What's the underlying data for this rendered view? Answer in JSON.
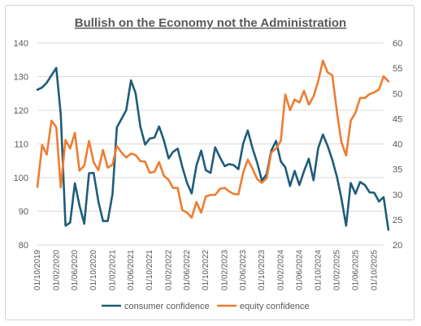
{
  "chart_data": {
    "type": "line",
    "title": "Bullish on the Economy not the Administration",
    "y_left": {
      "min": 80,
      "max": 140,
      "step": 10,
      "ticks": [
        "80",
        "90",
        "100",
        "110",
        "120",
        "130",
        "140"
      ]
    },
    "y_right": {
      "min": 20,
      "max": 60,
      "step": 5,
      "ticks": [
        "20",
        "25",
        "30",
        "35",
        "40",
        "45",
        "50",
        "55",
        "60"
      ]
    },
    "x_tick_labels": [
      "01/10/2019",
      "01/02/2020",
      "01/06/2020",
      "01/10/2020",
      "01/02/2021",
      "01/06/2021",
      "01/10/2021",
      "01/02/2022",
      "01/06/2022",
      "01/10/2022",
      "01/02/2023",
      "01/06/2023",
      "01/10/2023",
      "01/02/2024",
      "01/06/2024",
      "01/10/2024",
      "01/02/2025",
      "01/06/2025",
      "01/10/2025"
    ],
    "x_start": "2019-10-01",
    "x_end": "2025-12-01",
    "legend_position": "bottom",
    "series": [
      {
        "name": "consumer confidence",
        "axis": "left",
        "color": "#1f5c7a",
        "points": [
          [
            "2019-10-01",
            126.1
          ],
          [
            "2019-11-01",
            126.8
          ],
          [
            "2019-12-01",
            128.2
          ],
          [
            "2020-01-01",
            130.4
          ],
          [
            "2020-02-01",
            132.6
          ],
          [
            "2020-03-01",
            118.8
          ],
          [
            "2020-04-01",
            85.7
          ],
          [
            "2020-05-01",
            86.6
          ],
          [
            "2020-06-01",
            98.3
          ],
          [
            "2020-07-01",
            91.7
          ],
          [
            "2020-08-01",
            86.3
          ],
          [
            "2020-09-01",
            101.3
          ],
          [
            "2020-10-01",
            101.4
          ],
          [
            "2020-11-01",
            92.9
          ],
          [
            "2020-12-01",
            87.1
          ],
          [
            "2021-01-01",
            87.1
          ],
          [
            "2021-02-01",
            95.2
          ],
          [
            "2021-03-01",
            114.9
          ],
          [
            "2021-04-01",
            117.5
          ],
          [
            "2021-05-01",
            120.0
          ],
          [
            "2021-06-01",
            128.9
          ],
          [
            "2021-07-01",
            125.1
          ],
          [
            "2021-08-01",
            115.2
          ],
          [
            "2021-09-01",
            109.8
          ],
          [
            "2021-10-01",
            111.6
          ],
          [
            "2021-11-01",
            111.9
          ],
          [
            "2021-12-01",
            115.2
          ],
          [
            "2022-01-01",
            111.1
          ],
          [
            "2022-02-01",
            105.7
          ],
          [
            "2022-03-01",
            107.6
          ],
          [
            "2022-04-01",
            108.6
          ],
          [
            "2022-05-01",
            103.2
          ],
          [
            "2022-06-01",
            98.4
          ],
          [
            "2022-07-01",
            95.3
          ],
          [
            "2022-08-01",
            103.6
          ],
          [
            "2022-09-01",
            108.0
          ],
          [
            "2022-10-01",
            102.2
          ],
          [
            "2022-11-01",
            101.4
          ],
          [
            "2022-12-01",
            109.0
          ],
          [
            "2023-01-01",
            106.0
          ],
          [
            "2023-02-01",
            103.4
          ],
          [
            "2023-03-01",
            104.0
          ],
          [
            "2023-04-01",
            103.7
          ],
          [
            "2023-05-01",
            102.5
          ],
          [
            "2023-06-01",
            110.1
          ],
          [
            "2023-07-01",
            114.0
          ],
          [
            "2023-08-01",
            108.7
          ],
          [
            "2023-09-01",
            104.3
          ],
          [
            "2023-10-01",
            99.1
          ],
          [
            "2023-11-01",
            101.0
          ],
          [
            "2023-12-01",
            108.0
          ],
          [
            "2024-01-01",
            110.9
          ],
          [
            "2024-02-01",
            104.8
          ],
          [
            "2024-03-01",
            103.1
          ],
          [
            "2024-04-01",
            97.5
          ],
          [
            "2024-05-01",
            102.0
          ],
          [
            "2024-06-01",
            97.8
          ],
          [
            "2024-07-01",
            101.9
          ],
          [
            "2024-08-01",
            105.6
          ],
          [
            "2024-09-01",
            99.2
          ],
          [
            "2024-10-01",
            108.7
          ],
          [
            "2024-11-01",
            112.8
          ],
          [
            "2024-12-01",
            109.5
          ],
          [
            "2025-01-01",
            105.3
          ],
          [
            "2025-02-01",
            100.1
          ],
          [
            "2025-03-01",
            93.9
          ],
          [
            "2025-04-01",
            85.7
          ],
          [
            "2025-05-01",
            98.4
          ],
          [
            "2025-06-01",
            95.2
          ],
          [
            "2025-07-01",
            98.7
          ],
          [
            "2025-08-01",
            97.8
          ],
          [
            "2025-09-01",
            95.6
          ],
          [
            "2025-10-01",
            95.5
          ],
          [
            "2025-11-01",
            92.9
          ],
          [
            "2025-12-01",
            94.2
          ],
          [
            "2026-01-01",
            84.5
          ]
        ]
      },
      {
        "name": "equity confidence",
        "axis": "right",
        "color": "#ed7d31",
        "points": [
          [
            "2019-10-01",
            31.5
          ],
          [
            "2019-11-01",
            39.8
          ],
          [
            "2019-12-01",
            37.9
          ],
          [
            "2020-01-01",
            44.6
          ],
          [
            "2020-02-01",
            43.3
          ],
          [
            "2020-03-01",
            31.4
          ],
          [
            "2020-04-01",
            40.8
          ],
          [
            "2020-05-01",
            39.1
          ],
          [
            "2020-06-01",
            42.2
          ],
          [
            "2020-07-01",
            34.7
          ],
          [
            "2020-08-01",
            35.7
          ],
          [
            "2020-09-01",
            40.6
          ],
          [
            "2020-10-01",
            36.4
          ],
          [
            "2020-11-01",
            34.8
          ],
          [
            "2020-12-01",
            38.8
          ],
          [
            "2021-01-01",
            35.3
          ],
          [
            "2021-02-01",
            35.9
          ],
          [
            "2021-03-01",
            39.6
          ],
          [
            "2021-04-01",
            38.3
          ],
          [
            "2021-05-01",
            37.3
          ],
          [
            "2021-06-01",
            38.1
          ],
          [
            "2021-07-01",
            37.8
          ],
          [
            "2021-08-01",
            36.6
          ],
          [
            "2021-09-01",
            36.5
          ],
          [
            "2021-10-01",
            34.3
          ],
          [
            "2021-11-01",
            34.5
          ],
          [
            "2021-12-01",
            36.4
          ],
          [
            "2022-01-01",
            33.7
          ],
          [
            "2022-02-01",
            32.9
          ],
          [
            "2022-03-01",
            31.3
          ],
          [
            "2022-04-01",
            31.3
          ],
          [
            "2022-05-01",
            26.9
          ],
          [
            "2022-06-01",
            26.4
          ],
          [
            "2022-07-01",
            25.4
          ],
          [
            "2022-08-01",
            28.5
          ],
          [
            "2022-09-01",
            26.4
          ],
          [
            "2022-10-01",
            29.6
          ],
          [
            "2022-11-01",
            29.9
          ],
          [
            "2022-12-01",
            29.9
          ],
          [
            "2023-01-01",
            31.1
          ],
          [
            "2023-02-01",
            31.3
          ],
          [
            "2023-03-01",
            30.6
          ],
          [
            "2023-04-01",
            30.1
          ],
          [
            "2023-05-01",
            30.0
          ],
          [
            "2023-06-01",
            34.3
          ],
          [
            "2023-07-01",
            36.9
          ],
          [
            "2023-08-01",
            35.1
          ],
          [
            "2023-09-01",
            33.0
          ],
          [
            "2023-10-01",
            32.3
          ],
          [
            "2023-11-01",
            33.2
          ],
          [
            "2023-12-01",
            38.3
          ],
          [
            "2024-01-01",
            39.1
          ],
          [
            "2024-02-01",
            40.6
          ],
          [
            "2024-03-01",
            49.8
          ],
          [
            "2024-04-01",
            46.7
          ],
          [
            "2024-05-01",
            48.8
          ],
          [
            "2024-06-01",
            48.2
          ],
          [
            "2024-07-01",
            50.5
          ],
          [
            "2024-08-01",
            47.8
          ],
          [
            "2024-09-01",
            49.4
          ],
          [
            "2024-10-01",
            52.4
          ],
          [
            "2024-11-01",
            56.5
          ],
          [
            "2024-12-01",
            54.2
          ],
          [
            "2025-01-01",
            53.6
          ],
          [
            "2025-02-01",
            46.2
          ],
          [
            "2025-03-01",
            40.4
          ],
          [
            "2025-04-01",
            37.7
          ],
          [
            "2025-05-01",
            44.6
          ],
          [
            "2025-06-01",
            46.2
          ],
          [
            "2025-07-01",
            49.1
          ],
          [
            "2025-08-01",
            49.1
          ],
          [
            "2025-09-01",
            49.9
          ],
          [
            "2025-10-01",
            50.2
          ],
          [
            "2025-11-01",
            50.8
          ],
          [
            "2025-12-01",
            53.4
          ],
          [
            "2026-01-01",
            52.4
          ]
        ]
      }
    ]
  }
}
